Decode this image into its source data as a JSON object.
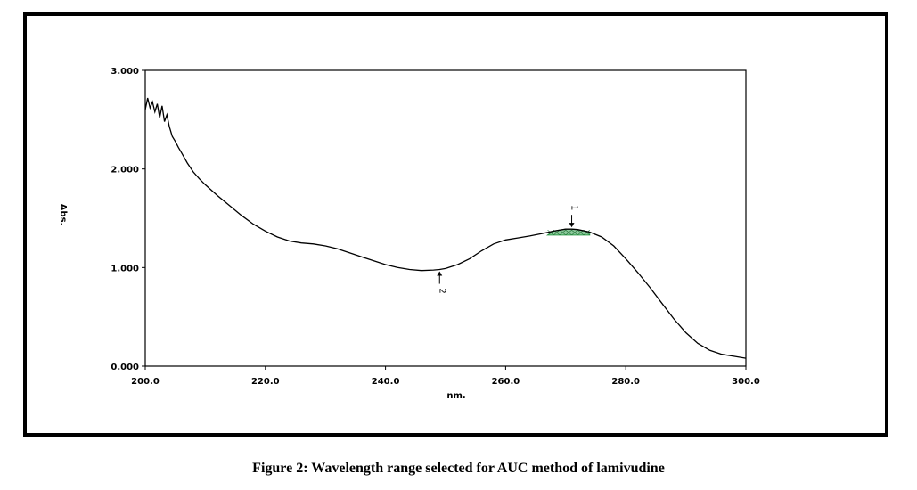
{
  "figure": {
    "caption": "Figure 2: Wavelength range selected for AUC method of lamivudine"
  },
  "chart_data": {
    "type": "line",
    "title": "",
    "xlabel": "nm.",
    "ylabel": "Abs.",
    "xlim": [
      200.0,
      300.0
    ],
    "ylim": [
      0.0,
      3.0
    ],
    "x_ticks": [
      "200.0",
      "220.0",
      "240.0",
      "260.0",
      "280.0",
      "300.0"
    ],
    "y_ticks": [
      "0.000",
      "1.000",
      "2.000",
      "3.000"
    ],
    "grid": false,
    "colors": {
      "line": "#000000",
      "auc_fill": "#2e9e4a"
    },
    "series": [
      {
        "x": [
          200.0,
          200.4,
          200.8,
          201.2,
          201.6,
          202.0,
          202.4,
          202.8,
          203.2,
          203.6,
          204.0,
          204.5,
          205.0,
          205.5,
          206.0,
          207.0,
          208.0,
          209.0,
          210.0,
          212.0,
          214.0,
          216.0,
          218.0,
          220.0,
          222.0,
          224.0,
          226.0,
          228.0,
          230.0,
          232.0,
          234.0,
          236.0,
          238.0,
          240.0,
          242.0,
          244.0,
          246.0,
          248.0,
          249.0,
          250.0,
          252.0,
          254.0,
          256.0,
          258.0,
          260.0,
          262.0,
          264.0,
          266.0,
          268.0,
          270.0,
          271.0,
          272.0,
          274.0,
          276.0,
          278.0,
          280.0,
          282.0,
          284.0,
          286.0,
          288.0,
          290.0,
          292.0,
          294.0,
          296.0,
          298.0,
          300.0
        ],
        "y": [
          2.6,
          2.72,
          2.62,
          2.68,
          2.58,
          2.66,
          2.52,
          2.64,
          2.48,
          2.55,
          2.43,
          2.33,
          2.28,
          2.22,
          2.17,
          2.06,
          1.97,
          1.9,
          1.84,
          1.73,
          1.63,
          1.53,
          1.44,
          1.37,
          1.31,
          1.27,
          1.25,
          1.24,
          1.22,
          1.19,
          1.15,
          1.11,
          1.07,
          1.03,
          1.0,
          0.98,
          0.97,
          0.975,
          0.98,
          0.99,
          1.03,
          1.09,
          1.17,
          1.24,
          1.28,
          1.3,
          1.32,
          1.345,
          1.37,
          1.39,
          1.39,
          1.385,
          1.36,
          1.31,
          1.22,
          1.09,
          0.95,
          0.8,
          0.64,
          0.48,
          0.34,
          0.23,
          0.16,
          0.12,
          0.1,
          0.08
        ]
      }
    ],
    "auc_region": {
      "x_start": 267.0,
      "x_end": 274.0,
      "y_base": 1.33
    },
    "annotations": [
      {
        "label": "1",
        "x": 271.0,
        "y": 1.39,
        "position": "above"
      },
      {
        "label": "2",
        "x": 249.0,
        "y": 0.98,
        "position": "below"
      }
    ]
  }
}
